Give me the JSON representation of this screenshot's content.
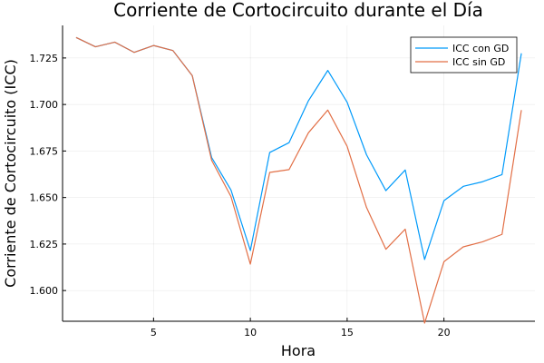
{
  "chart_data": {
    "type": "line",
    "title": "Corriente de Cortocircuito durante el Día",
    "xlabel": "Hora",
    "ylabel": "Corriente de Cortocircuito (ICC)",
    "xlim": [
      0.3,
      24.7
    ],
    "ylim": [
      1.5835,
      1.7425
    ],
    "xticks": [
      5,
      10,
      15,
      20
    ],
    "xtick_labels": [
      "5",
      "10",
      "15",
      "20"
    ],
    "yticks": [
      1.6,
      1.625,
      1.65,
      1.675,
      1.7,
      1.725
    ],
    "ytick_labels": [
      "1.600",
      "1.625",
      "1.650",
      "1.675",
      "1.700",
      "1.725"
    ],
    "grid": true,
    "legend_position": "top-right",
    "x": [
      1,
      2,
      3,
      4,
      5,
      6,
      7,
      8,
      9,
      10,
      11,
      12,
      13,
      14,
      15,
      16,
      17,
      18,
      19,
      20,
      21,
      22,
      23,
      24
    ],
    "series": [
      {
        "name": "ICC con GD",
        "color": "#009AFA",
        "values": [
          1.736,
          1.731,
          1.7335,
          1.728,
          1.7317,
          1.729,
          1.7155,
          1.6715,
          1.654,
          1.6215,
          1.6742,
          1.6795,
          1.702,
          1.7183,
          1.7012,
          1.673,
          1.6537,
          1.6648,
          1.6167,
          1.6483,
          1.656,
          1.6585,
          1.6623,
          1.7275
        ]
      },
      {
        "name": "ICC sin GD",
        "color": "#E26F46",
        "values": [
          1.736,
          1.731,
          1.7335,
          1.728,
          1.7317,
          1.729,
          1.7155,
          1.67,
          1.6505,
          1.6142,
          1.6635,
          1.665,
          1.6848,
          1.697,
          1.6775,
          1.6447,
          1.6222,
          1.633,
          1.5825,
          1.6155,
          1.6235,
          1.6262,
          1.6302,
          1.697
        ]
      }
    ]
  }
}
